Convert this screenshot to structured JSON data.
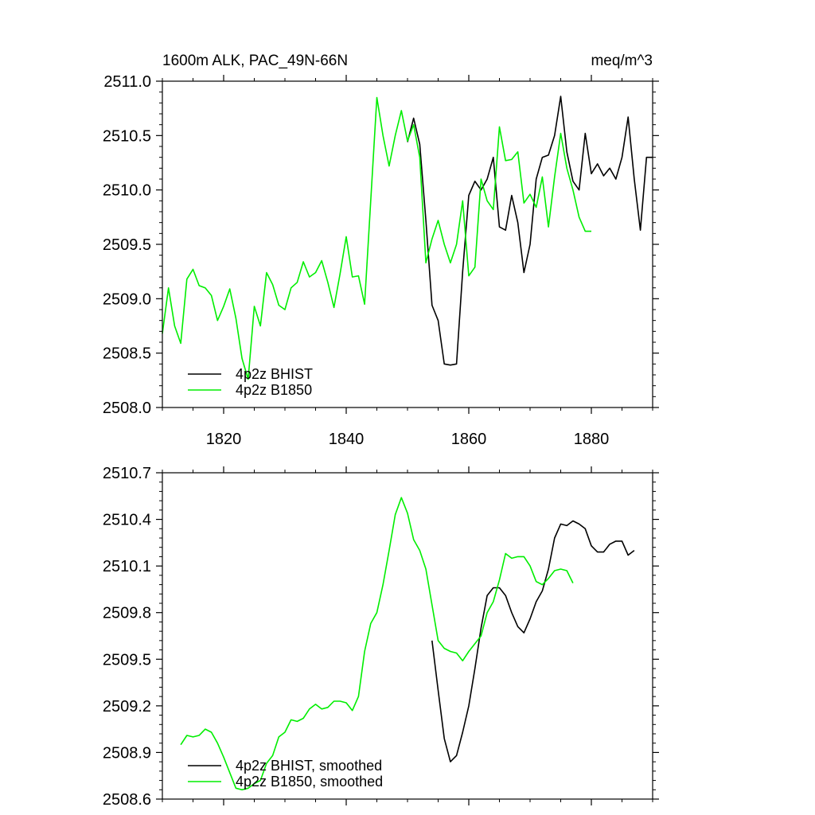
{
  "chart_data": [
    {
      "type": "line",
      "title_left": "1600m ALK, PAC_49N-66N",
      "title_right": "meq/m^3",
      "xlim": [
        1810,
        1890
      ],
      "ylim": [
        2508.0,
        2511.0
      ],
      "yticks": [
        "2508.0",
        "2508.5",
        "2509.0",
        "2509.5",
        "2510.0",
        "2510.5",
        "2511.0"
      ],
      "xticks": [
        "1820",
        "1840",
        "1860",
        "1880"
      ],
      "series": [
        {
          "name": "4p2z BHIST",
          "color": "#000000",
          "x": [
            1850,
            1851,
            1852,
            1853,
            1854,
            1855,
            1856,
            1857,
            1858,
            1859,
            1860,
            1861,
            1862,
            1863,
            1864,
            1865,
            1866,
            1867,
            1868,
            1869,
            1870,
            1871,
            1872,
            1873,
            1874,
            1875,
            1876,
            1877,
            1878,
            1879,
            1880,
            1881,
            1882,
            1883,
            1884,
            1885,
            1886,
            1887,
            1888,
            1889,
            1890
          ],
          "y": [
            2510.44,
            2510.66,
            2510.42,
            2509.72,
            2508.94,
            2508.8,
            2508.4,
            2508.39,
            2508.4,
            2509.25,
            2509.95,
            2510.08,
            2510.0,
            2510.1,
            2510.3,
            2509.66,
            2509.63,
            2509.95,
            2509.7,
            2509.24,
            2509.5,
            2510.1,
            2510.3,
            2510.32,
            2510.5,
            2510.86,
            2510.35,
            2510.08,
            2510.0,
            2510.52,
            2510.15,
            2510.24,
            2510.13,
            2510.2,
            2510.1,
            2510.3,
            2510.67,
            2510.1,
            2509.63,
            2510.3,
            2510.3
          ]
        },
        {
          "name": "4p2z B1850",
          "color": "#00ee00",
          "x": [
            1810,
            1811,
            1812,
            1813,
            1814,
            1815,
            1816,
            1817,
            1818,
            1819,
            1820,
            1821,
            1822,
            1823,
            1824,
            1825,
            1826,
            1827,
            1828,
            1829,
            1830,
            1831,
            1832,
            1833,
            1834,
            1835,
            1836,
            1837,
            1838,
            1839,
            1840,
            1841,
            1842,
            1843,
            1844,
            1845,
            1846,
            1847,
            1848,
            1849,
            1850,
            1851,
            1852,
            1853,
            1854,
            1855,
            1856,
            1857,
            1858,
            1859,
            1860,
            1861,
            1862,
            1863,
            1864,
            1865,
            1866,
            1867,
            1868,
            1869,
            1870,
            1871,
            1872,
            1873,
            1874,
            1875,
            1876,
            1877,
            1878,
            1879,
            1880
          ],
          "y": [
            2508.68,
            2509.1,
            2508.75,
            2508.59,
            2509.18,
            2509.27,
            2509.12,
            2509.1,
            2509.03,
            2508.8,
            2508.93,
            2509.09,
            2508.82,
            2508.45,
            2508.26,
            2508.93,
            2508.75,
            2509.24,
            2509.13,
            2508.94,
            2508.9,
            2509.1,
            2509.15,
            2509.34,
            2509.2,
            2509.24,
            2509.35,
            2509.15,
            2508.92,
            2509.23,
            2509.57,
            2509.2,
            2509.21,
            2508.95,
            2509.9,
            2510.85,
            2510.5,
            2510.22,
            2510.5,
            2510.73,
            2510.45,
            2510.6,
            2510.3,
            2509.33,
            2509.55,
            2509.72,
            2509.5,
            2509.33,
            2509.5,
            2509.9,
            2509.21,
            2509.29,
            2510.1,
            2509.9,
            2509.82,
            2510.58,
            2510.27,
            2510.28,
            2510.35,
            2509.88,
            2509.96,
            2509.84,
            2510.12,
            2509.66,
            2510.12,
            2510.52,
            2510.2,
            2510.0,
            2509.75,
            2509.62,
            2509.62
          ]
        }
      ]
    },
    {
      "type": "line",
      "xlim": [
        1810,
        1890
      ],
      "ylim": [
        2508.6,
        2510.7
      ],
      "yticks": [
        "2508.6",
        "2508.9",
        "2509.2",
        "2509.5",
        "2509.8",
        "2510.1",
        "2510.4",
        "2510.7"
      ],
      "series": [
        {
          "name": "4p2z BHIST, smoothed",
          "color": "#000000",
          "x": [
            1854,
            1855,
            1856,
            1857,
            1858,
            1859,
            1860,
            1861,
            1862,
            1863,
            1864,
            1865,
            1866,
            1867,
            1868,
            1869,
            1870,
            1871,
            1872,
            1873,
            1874,
            1875,
            1876,
            1877,
            1878,
            1879,
            1880,
            1881,
            1882,
            1883,
            1884,
            1885,
            1886,
            1887
          ],
          "y": [
            2509.62,
            2509.3,
            2508.99,
            2508.84,
            2508.88,
            2509.03,
            2509.2,
            2509.44,
            2509.7,
            2509.91,
            2509.96,
            2509.96,
            2509.91,
            2509.8,
            2509.71,
            2509.67,
            2509.76,
            2509.87,
            2509.94,
            2510.08,
            2510.28,
            2510.37,
            2510.36,
            2510.39,
            2510.37,
            2510.34,
            2510.23,
            2510.19,
            2510.19,
            2510.24,
            2510.26,
            2510.26,
            2510.17,
            2510.2
          ]
        },
        {
          "name": "4p2z B1850, smoothed",
          "color": "#00ee00",
          "x": [
            1813,
            1814,
            1815,
            1816,
            1817,
            1818,
            1819,
            1820,
            1821,
            1822,
            1823,
            1824,
            1825,
            1826,
            1827,
            1828,
            1829,
            1830,
            1831,
            1832,
            1833,
            1834,
            1835,
            1836,
            1837,
            1838,
            1839,
            1840,
            1841,
            1842,
            1843,
            1844,
            1845,
            1846,
            1847,
            1848,
            1849,
            1850,
            1851,
            1852,
            1853,
            1854,
            1855,
            1856,
            1857,
            1858,
            1859,
            1860,
            1861,
            1862,
            1863,
            1864,
            1865,
            1866,
            1867,
            1868,
            1869,
            1870,
            1871,
            1872,
            1873,
            1874,
            1875,
            1876,
            1877
          ],
          "y": [
            2508.95,
            2509.01,
            2509.0,
            2509.01,
            2509.05,
            2509.03,
            2508.96,
            2508.87,
            2508.77,
            2508.67,
            2508.66,
            2508.67,
            2508.7,
            2508.72,
            2508.83,
            2508.88,
            2509.0,
            2509.03,
            2509.11,
            2509.1,
            2509.12,
            2509.18,
            2509.21,
            2509.18,
            2509.19,
            2509.23,
            2509.23,
            2509.22,
            2509.17,
            2509.26,
            2509.55,
            2509.73,
            2509.8,
            2509.98,
            2510.2,
            2510.43,
            2510.54,
            2510.44,
            2510.27,
            2510.2,
            2510.08,
            2509.85,
            2509.62,
            2509.57,
            2509.55,
            2509.54,
            2509.49,
            2509.55,
            2509.6,
            2509.65,
            2509.8,
            2509.87,
            2510.01,
            2510.18,
            2510.15,
            2510.16,
            2510.16,
            2510.1,
            2510.0,
            2509.98,
            2510.02,
            2510.07,
            2510.08,
            2510.07,
            2509.99
          ]
        }
      ]
    }
  ]
}
